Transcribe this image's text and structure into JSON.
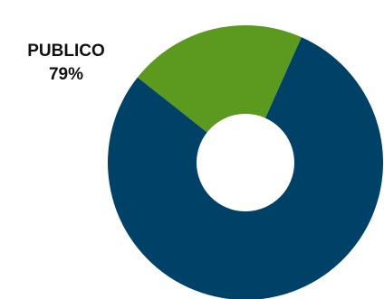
{
  "chart_data": {
    "type": "pie",
    "variant": "donut",
    "title": "",
    "slices": [
      {
        "value": 79,
        "color": "#004168",
        "label": "PUBLICO",
        "value_label": "79%"
      },
      {
        "value": 21,
        "color": "#5b9a1f",
        "label": "",
        "value_label": ""
      }
    ],
    "legend": "none"
  }
}
